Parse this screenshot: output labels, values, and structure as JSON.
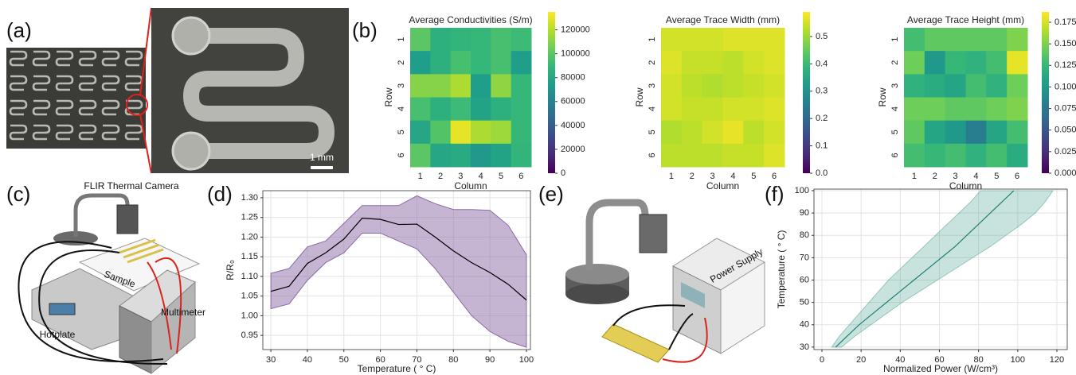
{
  "panels": {
    "labels": [
      "(a)",
      "(b)",
      "(c)",
      "(d)",
      "(e)",
      "(f)"
    ]
  },
  "figure_text": {
    "scale_bar": "1 mm",
    "camera": "FLIR Thermal Camera",
    "sample": "Sample",
    "multimeter": "Multimeter",
    "hotplate": "Hotplate",
    "power_supply": "Power Supply"
  },
  "chart_data": [
    {
      "type": "heatmap",
      "title": "Average Conductivities (S/m)",
      "categories": [
        "1",
        "2",
        "3",
        "4",
        "5",
        "6"
      ],
      "rows": [
        "1",
        "2",
        "3",
        "4",
        "5",
        "6"
      ],
      "xlabel": "Column",
      "ylabel": "Row",
      "values": [
        [
          100000,
          85000,
          88000,
          90000,
          95000,
          92000
        ],
        [
          75000,
          85000,
          95000,
          90000,
          95000,
          75000
        ],
        [
          110000,
          110000,
          118000,
          75000,
          112000,
          90000
        ],
        [
          95000,
          85000,
          92000,
          78000,
          85000,
          90000
        ],
        [
          80000,
          98000,
          130000,
          118000,
          115000,
          90000
        ],
        [
          100000,
          80000,
          82000,
          72000,
          78000,
          88000
        ]
      ],
      "clim": [
        0,
        135000
      ],
      "cticks": [
        0,
        20000,
        40000,
        60000,
        80000,
        100000,
        120000
      ],
      "colormap": "viridis"
    },
    {
      "type": "heatmap",
      "title": "Average Trace Width (mm)",
      "categories": [
        "1",
        "2",
        "3",
        "4",
        "5",
        "6"
      ],
      "rows": [
        "1",
        "2",
        "3",
        "4",
        "5",
        "6"
      ],
      "xlabel": "Column",
      "ylabel": "Row",
      "values": [
        [
          0.55,
          0.55,
          0.55,
          0.56,
          0.56,
          0.56
        ],
        [
          0.56,
          0.54,
          0.54,
          0.53,
          0.55,
          0.56
        ],
        [
          0.55,
          0.53,
          0.52,
          0.53,
          0.54,
          0.55
        ],
        [
          0.55,
          0.54,
          0.54,
          0.55,
          0.55,
          0.56
        ],
        [
          0.52,
          0.53,
          0.55,
          0.57,
          0.53,
          0.55
        ],
        [
          0.53,
          0.53,
          0.53,
          0.54,
          0.54,
          0.56
        ]
      ],
      "clim": [
        0,
        0.59
      ],
      "cticks": [
        {
          "value": 0,
          "label": "0.0"
        },
        0.1,
        0.2,
        0.3,
        0.4,
        0.5
      ],
      "colormap": "viridis"
    },
    {
      "type": "heatmap",
      "title": "Average Trace Height (mm)",
      "categories": [
        "1",
        "2",
        "3",
        "4",
        "5",
        "6"
      ],
      "rows": [
        "1",
        "2",
        "3",
        "4",
        "5",
        "6"
      ],
      "xlabel": "Column",
      "ylabel": "Row",
      "values": [
        [
          0.13,
          0.14,
          0.14,
          0.14,
          0.14,
          0.15
        ],
        [
          0.145,
          0.1,
          0.125,
          0.12,
          0.13,
          0.18
        ],
        [
          0.12,
          0.115,
          0.11,
          0.13,
          0.12,
          0.145
        ],
        [
          0.145,
          0.145,
          0.14,
          0.14,
          0.145,
          0.15
        ],
        [
          0.14,
          0.11,
          0.1,
          0.08,
          0.11,
          0.13
        ],
        [
          0.13,
          0.125,
          0.13,
          0.12,
          0.13,
          0.115
        ]
      ],
      "clim": [
        0,
        0.187
      ],
      "cticks": [
        {
          "value": 0,
          "label": "0.000"
        },
        0.025,
        {
          "value": 0.05,
          "label": "0.050"
        },
        0.075,
        {
          "value": 0.1,
          "label": "0.100"
        },
        0.125,
        {
          "value": 0.15,
          "label": "0.150"
        },
        0.175
      ],
      "colormap": "viridis"
    },
    {
      "type": "line",
      "xlabel": "Temperature ( ° C)",
      "ylabel": "R/R₀",
      "x": [
        30,
        35,
        40,
        45,
        50,
        55,
        60,
        65,
        70,
        75,
        80,
        85,
        90,
        95,
        100
      ],
      "series": [
        {
          "values": [
            1.062,
            1.075,
            1.133,
            1.16,
            1.195,
            1.248,
            1.245,
            1.232,
            1.233,
            1.2,
            1.165,
            1.135,
            1.11,
            1.08,
            1.04
          ],
          "upper": [
            1.108,
            1.12,
            1.175,
            1.19,
            1.235,
            1.28,
            1.28,
            1.28,
            1.305,
            1.285,
            1.27,
            1.27,
            1.268,
            1.23,
            1.155
          ],
          "lower": [
            1.018,
            1.03,
            1.09,
            1.135,
            1.16,
            1.21,
            1.21,
            1.19,
            1.17,
            1.12,
            1.06,
            1.0,
            0.96,
            0.935,
            0.92
          ],
          "color": "#000000",
          "band_color": "#8c6ba5"
        }
      ],
      "xlim": [
        27.8,
        101.1
      ],
      "ylim": [
        0.914,
        1.318
      ],
      "xticks": [
        30,
        40,
        50,
        60,
        70,
        80,
        90,
        100
      ],
      "yticks": [
        0.95,
        {
          "value": 1,
          "label": "1.00"
        },
        1.05,
        {
          "value": 1.1,
          "label": "1.10"
        },
        1.15,
        {
          "value": 1.2,
          "label": "1.20"
        },
        1.25,
        {
          "value": 1.3,
          "label": "1.30"
        }
      ],
      "grid": true
    },
    {
      "type": "line",
      "xlabel": "Normalized Power (W/cm³)",
      "ylabel": "Temperature ( ° C)",
      "series": [
        {
          "x": [
            7,
            13,
            19,
            26,
            33,
            40,
            47,
            54,
            61,
            68,
            74,
            80,
            86,
            92,
            98
          ],
          "values": [
            30,
            35,
            40,
            45,
            50,
            55,
            60,
            65,
            70,
            75,
            80,
            85,
            90,
            95,
            100
          ],
          "x_lower": [
            5,
            9,
            14,
            19,
            24,
            29,
            34,
            40,
            46,
            52,
            58,
            64,
            70,
            76,
            81
          ],
          "x_upper": [
            10,
            17,
            25,
            33,
            41,
            50,
            59,
            68,
            77,
            86,
            94,
            102,
            109,
            114,
            118
          ],
          "color": "#1f7f74",
          "band_color": "#4a9f92"
        }
      ],
      "xlim": [
        -4.07,
        125.3
      ],
      "ylim": [
        28.9,
        100.7
      ],
      "xticks": [
        0,
        20,
        40,
        60,
        80,
        100,
        120
      ],
      "yticks": [
        30,
        40,
        50,
        60,
        70,
        80,
        90,
        100
      ],
      "grid": true
    }
  ]
}
